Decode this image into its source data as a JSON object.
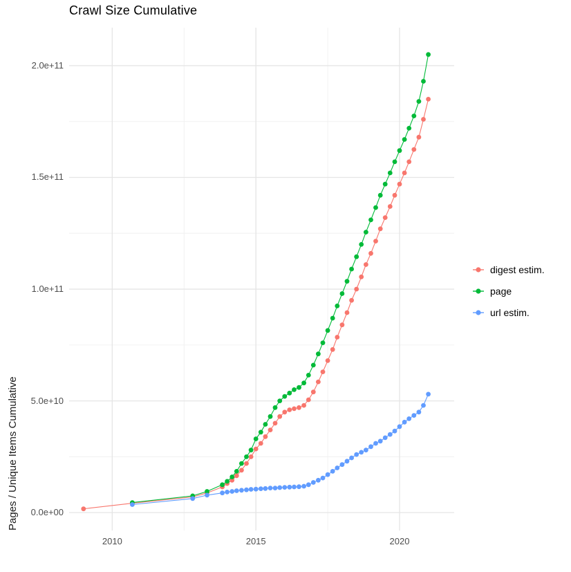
{
  "chart_data": {
    "type": "scatter",
    "title": "Crawl Size Cumulative",
    "xlabel": "",
    "ylabel": "Pages / Unique Items Cumulative",
    "xlim": [
      2008.5,
      2021.9
    ],
    "ylim": [
      -8000000000.0,
      217000000000.0
    ],
    "grid": {
      "on": true,
      "major_color": "#e5e5e5",
      "minor_color": "#f0f0f0"
    },
    "xticks": {
      "values": [
        2010,
        2015,
        2020
      ],
      "labels": [
        "2010",
        "2015",
        "2020"
      ]
    },
    "yticks": {
      "values": [
        0,
        50000000000.0,
        100000000000.0,
        150000000000.0,
        200000000000.0
      ],
      "labels": [
        "0.0e+00",
        "5.0e+10",
        "1.0e+11",
        "1.5e+11",
        "2.0e+11"
      ]
    },
    "x_minor": [
      2012.5,
      2017.5
    ],
    "y_minor": [
      25000000000.0,
      75000000000.0,
      125000000000.0,
      175000000000.0
    ],
    "legend": {
      "position": "right",
      "items": [
        {
          "label": "digest estim.",
          "color": "#F8766D"
        },
        {
          "label": "page",
          "color": "#00BA38"
        },
        {
          "label": "url estim.",
          "color": "#619CFF"
        }
      ]
    },
    "series": [
      {
        "name": "digest estim.",
        "color": "#F8766D",
        "points": [
          [
            2009.0,
            1700000000.0
          ],
          [
            2010.7,
            4200000000.0
          ],
          [
            2012.8,
            7000000000.0
          ],
          [
            2013.3,
            8800000000.0
          ],
          [
            2013.83,
            11500000000.0
          ],
          [
            2014.0,
            13000000000.0
          ],
          [
            2014.17,
            14500000000.0
          ],
          [
            2014.33,
            16500000000.0
          ],
          [
            2014.5,
            19000000000.0
          ],
          [
            2014.67,
            22000000000.0
          ],
          [
            2014.83,
            25000000000.0
          ],
          [
            2015.0,
            28500000000.0
          ],
          [
            2015.17,
            31000000000.0
          ],
          [
            2015.33,
            34000000000.0
          ],
          [
            2015.5,
            37000000000.0
          ],
          [
            2015.67,
            40000000000.0
          ],
          [
            2015.83,
            43000000000.0
          ],
          [
            2016.0,
            45000000000.0
          ],
          [
            2016.17,
            46000000000.0
          ],
          [
            2016.33,
            46500000000.0
          ],
          [
            2016.5,
            47000000000.0
          ],
          [
            2016.67,
            48000000000.0
          ],
          [
            2016.83,
            50500000000.0
          ],
          [
            2017.0,
            54000000000.0
          ],
          [
            2017.17,
            58500000000.0
          ],
          [
            2017.33,
            63000000000.0
          ],
          [
            2017.5,
            68000000000.0
          ],
          [
            2017.67,
            73000000000.0
          ],
          [
            2017.83,
            78500000000.0
          ],
          [
            2018.0,
            84000000000.0
          ],
          [
            2018.17,
            89500000000.0
          ],
          [
            2018.33,
            95000000000.0
          ],
          [
            2018.5,
            100000000000.0
          ],
          [
            2018.67,
            105500000000.0
          ],
          [
            2018.83,
            111000000000.0
          ],
          [
            2019.0,
            116000000000.0
          ],
          [
            2019.17,
            121500000000.0
          ],
          [
            2019.33,
            127000000000.0
          ],
          [
            2019.5,
            132000000000.0
          ],
          [
            2019.67,
            137000000000.0
          ],
          [
            2019.83,
            142000000000.0
          ],
          [
            2020.0,
            147000000000.0
          ],
          [
            2020.17,
            152000000000.0
          ],
          [
            2020.33,
            157000000000.0
          ],
          [
            2020.5,
            162500000000.0
          ],
          [
            2020.67,
            168000000000.0
          ],
          [
            2020.83,
            176000000000.0
          ],
          [
            2021.0,
            185000000000.0
          ]
        ]
      },
      {
        "name": "page",
        "color": "#00BA38",
        "points": [
          [
            2010.7,
            4500000000.0
          ],
          [
            2012.8,
            7500000000.0
          ],
          [
            2013.3,
            9500000000.0
          ],
          [
            2013.83,
            12500000000.0
          ],
          [
            2014.0,
            14000000000.0
          ],
          [
            2014.17,
            16000000000.0
          ],
          [
            2014.33,
            18500000000.0
          ],
          [
            2014.5,
            22000000000.0
          ],
          [
            2014.67,
            25000000000.0
          ],
          [
            2014.83,
            28000000000.0
          ],
          [
            2015.0,
            33000000000.0
          ],
          [
            2015.17,
            36000000000.0
          ],
          [
            2015.33,
            39500000000.0
          ],
          [
            2015.5,
            43000000000.0
          ],
          [
            2015.67,
            47000000000.0
          ],
          [
            2015.83,
            50000000000.0
          ],
          [
            2016.0,
            52000000000.0
          ],
          [
            2016.17,
            53500000000.0
          ],
          [
            2016.33,
            55000000000.0
          ],
          [
            2016.5,
            56000000000.0
          ],
          [
            2016.67,
            58000000000.0
          ],
          [
            2016.83,
            61500000000.0
          ],
          [
            2017.0,
            66000000000.0
          ],
          [
            2017.17,
            71000000000.0
          ],
          [
            2017.33,
            76000000000.0
          ],
          [
            2017.5,
            81500000000.0
          ],
          [
            2017.67,
            87000000000.0
          ],
          [
            2017.83,
            92500000000.0
          ],
          [
            2018.0,
            98000000000.0
          ],
          [
            2018.17,
            103500000000.0
          ],
          [
            2018.33,
            109000000000.0
          ],
          [
            2018.5,
            114500000000.0
          ],
          [
            2018.67,
            120000000000.0
          ],
          [
            2018.83,
            125500000000.0
          ],
          [
            2019.0,
            131000000000.0
          ],
          [
            2019.17,
            136500000000.0
          ],
          [
            2019.33,
            142000000000.0
          ],
          [
            2019.5,
            147000000000.0
          ],
          [
            2019.67,
            152000000000.0
          ],
          [
            2019.83,
            157000000000.0
          ],
          [
            2020.0,
            162000000000.0
          ],
          [
            2020.17,
            167000000000.0
          ],
          [
            2020.33,
            172000000000.0
          ],
          [
            2020.5,
            177500000000.0
          ],
          [
            2020.67,
            184000000000.0
          ],
          [
            2020.83,
            193000000000.0
          ],
          [
            2021.0,
            205000000000.0
          ]
        ]
      },
      {
        "name": "url estim.",
        "color": "#619CFF",
        "points": [
          [
            2010.7,
            3600000000.0
          ],
          [
            2012.8,
            6300000000.0
          ],
          [
            2013.3,
            7800000000.0
          ],
          [
            2013.83,
            8800000000.0
          ],
          [
            2014.0,
            9200000000.0
          ],
          [
            2014.17,
            9500000000.0
          ],
          [
            2014.33,
            9800000000.0
          ],
          [
            2014.5,
            10000000000.0
          ],
          [
            2014.67,
            10200000000.0
          ],
          [
            2014.83,
            10400000000.0
          ],
          [
            2015.0,
            10500000000.0
          ],
          [
            2015.17,
            10700000000.0
          ],
          [
            2015.33,
            10800000000.0
          ],
          [
            2015.5,
            11000000000.0
          ],
          [
            2015.67,
            11000000000.0
          ],
          [
            2015.83,
            11200000000.0
          ],
          [
            2016.0,
            11300000000.0
          ],
          [
            2016.17,
            11400000000.0
          ],
          [
            2016.33,
            11500000000.0
          ],
          [
            2016.5,
            11600000000.0
          ],
          [
            2016.67,
            11800000000.0
          ],
          [
            2016.83,
            12500000000.0
          ],
          [
            2017.0,
            13500000000.0
          ],
          [
            2017.17,
            14500000000.0
          ],
          [
            2017.33,
            15500000000.0
          ],
          [
            2017.5,
            17000000000.0
          ],
          [
            2017.67,
            18500000000.0
          ],
          [
            2017.83,
            20000000000.0
          ],
          [
            2018.0,
            21500000000.0
          ],
          [
            2018.17,
            23000000000.0
          ],
          [
            2018.33,
            24500000000.0
          ],
          [
            2018.5,
            26000000000.0
          ],
          [
            2018.67,
            27000000000.0
          ],
          [
            2018.83,
            28000000000.0
          ],
          [
            2019.0,
            29500000000.0
          ],
          [
            2019.17,
            31000000000.0
          ],
          [
            2019.33,
            32000000000.0
          ],
          [
            2019.5,
            33500000000.0
          ],
          [
            2019.67,
            35000000000.0
          ],
          [
            2019.83,
            36500000000.0
          ],
          [
            2020.0,
            38500000000.0
          ],
          [
            2020.17,
            40500000000.0
          ],
          [
            2020.33,
            42000000000.0
          ],
          [
            2020.5,
            43500000000.0
          ],
          [
            2020.67,
            45000000000.0
          ],
          [
            2020.83,
            48000000000.0
          ],
          [
            2021.0,
            53000000000.0
          ]
        ]
      }
    ]
  }
}
